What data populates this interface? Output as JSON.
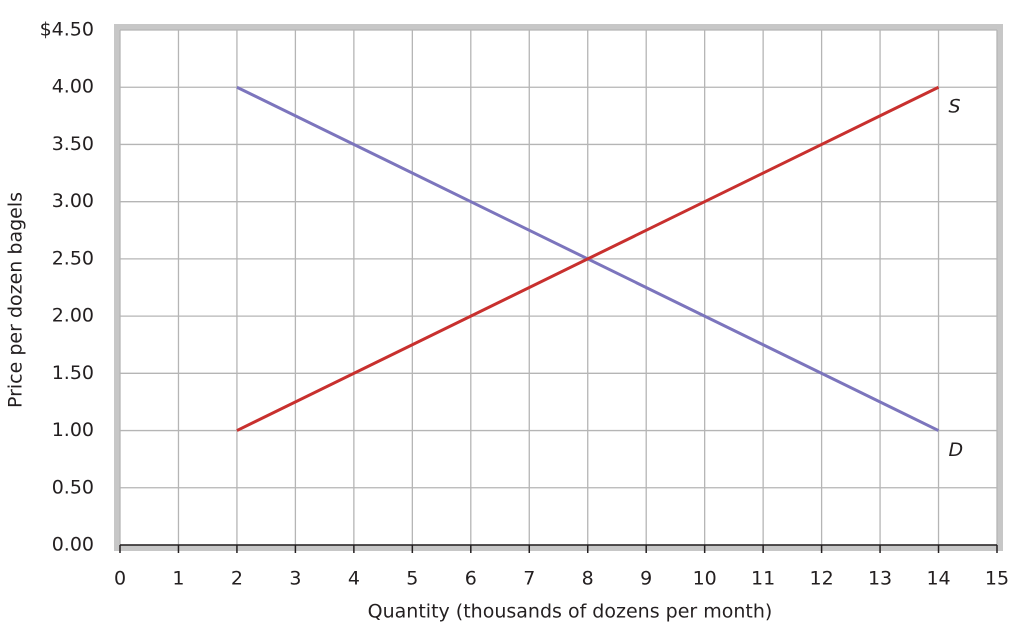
{
  "chart_data": {
    "type": "line",
    "x_label": "Quantity (thousands of dozens per month)",
    "y_label": "Price per dozen bagels",
    "x": [
      2,
      14
    ],
    "series": [
      {
        "name": "D",
        "color": "#7c75bd",
        "values": [
          4,
          1
        ]
      },
      {
        "name": "S",
        "color": "#c8302e",
        "values": [
          1,
          4
        ]
      }
    ],
    "xlim": [
      0,
      15
    ],
    "xticks": [
      0,
      1,
      2,
      3,
      4,
      5,
      6,
      7,
      8,
      9,
      10,
      11,
      12,
      13,
      14,
      15
    ],
    "ylim": [
      0,
      4.5
    ],
    "yticks": [
      {
        "value": 0,
        "label": "0.00"
      },
      {
        "value": 0.5,
        "label": "0.50"
      },
      {
        "value": 1,
        "label": "1.00"
      },
      {
        "value": 1.5,
        "label": "1.50"
      },
      {
        "value": 2,
        "label": "2.00"
      },
      {
        "value": 2.5,
        "label": "2.50"
      },
      {
        "value": 3,
        "label": "3.00"
      },
      {
        "value": 3.5,
        "label": "3.50"
      },
      {
        "value": 4,
        "label": "4.00"
      },
      {
        "value": 4.5,
        "label": "$4.50"
      }
    ],
    "grid": true
  }
}
